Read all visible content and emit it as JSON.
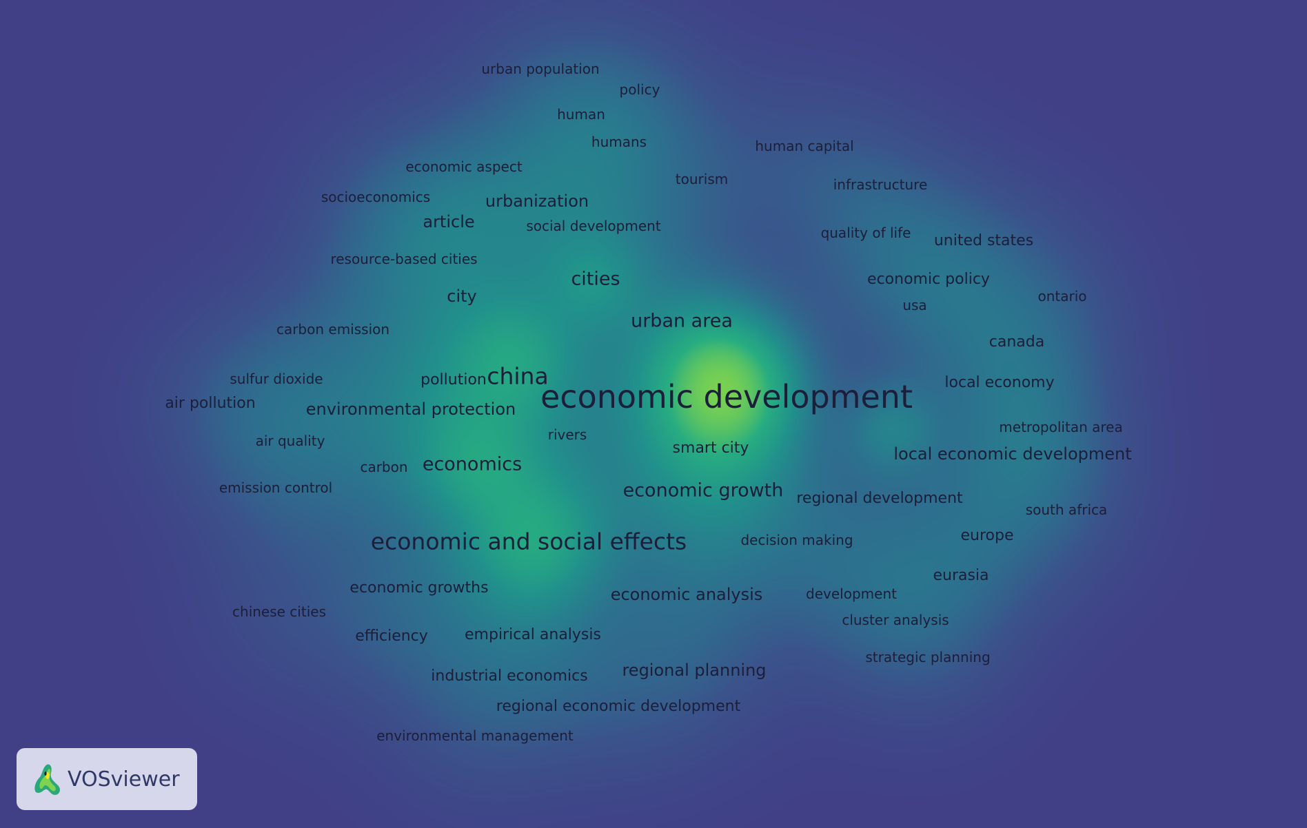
{
  "app": {
    "name": "VOSviewer",
    "logo_icon": "vosviewer-logo-icon"
  },
  "colors": {
    "background": "#413f86",
    "text": "#1c1e3a",
    "low": "#3f4a8a",
    "mid": "#22a884",
    "high": "#e4e419"
  },
  "terms": [
    {
      "label": "urban population",
      "weight": 2
    },
    {
      "label": "policy",
      "weight": 2
    },
    {
      "label": "human",
      "weight": 2
    },
    {
      "label": "humans",
      "weight": 2
    },
    {
      "label": "human capital",
      "weight": 2
    },
    {
      "label": "economic aspect",
      "weight": 2
    },
    {
      "label": "tourism",
      "weight": 2
    },
    {
      "label": "infrastructure",
      "weight": 2
    },
    {
      "label": "socioeconomics",
      "weight": 2
    },
    {
      "label": "urbanization",
      "weight": 4
    },
    {
      "label": "article",
      "weight": 4
    },
    {
      "label": "social development",
      "weight": 2
    },
    {
      "label": "quality of life",
      "weight": 2
    },
    {
      "label": "united states",
      "weight": 3
    },
    {
      "label": "resource-based cities",
      "weight": 2
    },
    {
      "label": "cities",
      "weight": 6
    },
    {
      "label": "economic policy",
      "weight": 3
    },
    {
      "label": "city",
      "weight": 4
    },
    {
      "label": "usa",
      "weight": 2
    },
    {
      "label": "ontario",
      "weight": 2
    },
    {
      "label": "urban area",
      "weight": 6
    },
    {
      "label": "carbon emission",
      "weight": 2
    },
    {
      "label": "canada",
      "weight": 3
    },
    {
      "label": "sulfur dioxide",
      "weight": 2
    },
    {
      "label": "pollution",
      "weight": 3
    },
    {
      "label": "china",
      "weight": 8
    },
    {
      "label": "economic development",
      "weight": 20
    },
    {
      "label": "local economy",
      "weight": 3
    },
    {
      "label": "air pollution",
      "weight": 3
    },
    {
      "label": "environmental protection",
      "weight": 4
    },
    {
      "label": "metropolitan area",
      "weight": 2
    },
    {
      "label": "rivers",
      "weight": 2
    },
    {
      "label": "air quality",
      "weight": 2
    },
    {
      "label": "smart city",
      "weight": 4
    },
    {
      "label": "local economic development",
      "weight": 8
    },
    {
      "label": "carbon",
      "weight": 2
    },
    {
      "label": "economics",
      "weight": 8
    },
    {
      "label": "emission control",
      "weight": 2
    },
    {
      "label": "economic growth",
      "weight": 6
    },
    {
      "label": "regional development",
      "weight": 3
    },
    {
      "label": "south africa",
      "weight": 2
    },
    {
      "label": "economic and social effects",
      "weight": 10
    },
    {
      "label": "decision making",
      "weight": 2
    },
    {
      "label": "europe",
      "weight": 3
    },
    {
      "label": "eurasia",
      "weight": 3
    },
    {
      "label": "economic growths",
      "weight": 3
    },
    {
      "label": "economic analysis",
      "weight": 4
    },
    {
      "label": "development",
      "weight": 2
    },
    {
      "label": "chinese cities",
      "weight": 2
    },
    {
      "label": "cluster analysis",
      "weight": 2
    },
    {
      "label": "efficiency",
      "weight": 3
    },
    {
      "label": "empirical analysis",
      "weight": 3
    },
    {
      "label": "strategic planning",
      "weight": 2
    },
    {
      "label": "industrial economics",
      "weight": 3
    },
    {
      "label": "regional planning",
      "weight": 4
    },
    {
      "label": "regional economic development",
      "weight": 3
    },
    {
      "label": "environmental management",
      "weight": 2
    }
  ]
}
